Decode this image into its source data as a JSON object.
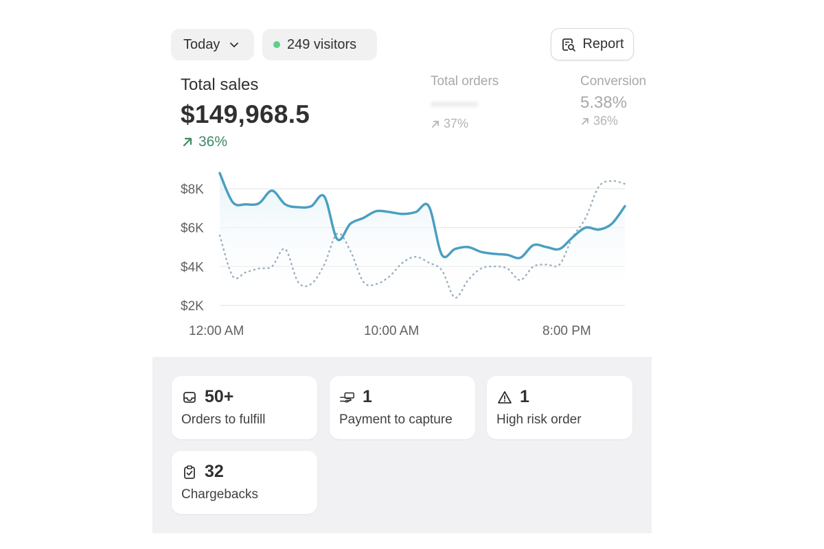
{
  "controls": {
    "period_label": "Today",
    "visitors_label": "249 visitors",
    "report_label": "Report"
  },
  "metrics": {
    "total_sales": {
      "label": "Total sales",
      "value": "$149,968.5",
      "trend": "36%"
    },
    "total_orders": {
      "label": "Total orders",
      "value": "",
      "trend": "37%"
    },
    "conversion": {
      "label": "Conversion",
      "value": "5.38%",
      "trend": "36%"
    }
  },
  "chart_data": {
    "type": "line",
    "x_tick_labels": [
      "12:00 AM",
      "10:00 AM",
      "8:00 PM"
    ],
    "y_tick_labels": [
      "$8K",
      "$6K",
      "$4K",
      "$2K"
    ],
    "ylim": [
      2000,
      8000
    ],
    "series": [
      {
        "style": "solid",
        "color": "#4a9fc0",
        "values": [
          8800,
          7300,
          7200,
          7250,
          7900,
          7200,
          7050,
          7100,
          7600,
          5400,
          6200,
          6500,
          6850,
          6800,
          6700,
          6800,
          7100,
          4600,
          4900,
          5000,
          4750,
          4650,
          4600,
          4450,
          5100,
          5000,
          4900,
          5500,
          6000,
          5900,
          6200,
          7100
        ]
      },
      {
        "style": "dotted",
        "color": "#9bb0c0",
        "values": [
          5600,
          3500,
          3700,
          3900,
          4000,
          4900,
          3200,
          3100,
          4100,
          5700,
          4800,
          3200,
          3100,
          3500,
          4200,
          4500,
          4200,
          3800,
          2400,
          3300,
          3900,
          4000,
          3900,
          3300,
          4000,
          4100,
          4100,
          5500,
          6500,
          8100,
          8400,
          8250
        ]
      }
    ]
  },
  "tiles": [
    {
      "value": "50+",
      "label": "Orders to fulfill",
      "icon": "inbox-icon"
    },
    {
      "value": "1",
      "label": "Payment to capture",
      "icon": "hand-money-icon"
    },
    {
      "value": "1",
      "label": "High risk order",
      "icon": "alert-triangle-icon"
    },
    {
      "value": "32",
      "label": "Chargebacks",
      "icon": "clipboard-check-icon"
    }
  ]
}
